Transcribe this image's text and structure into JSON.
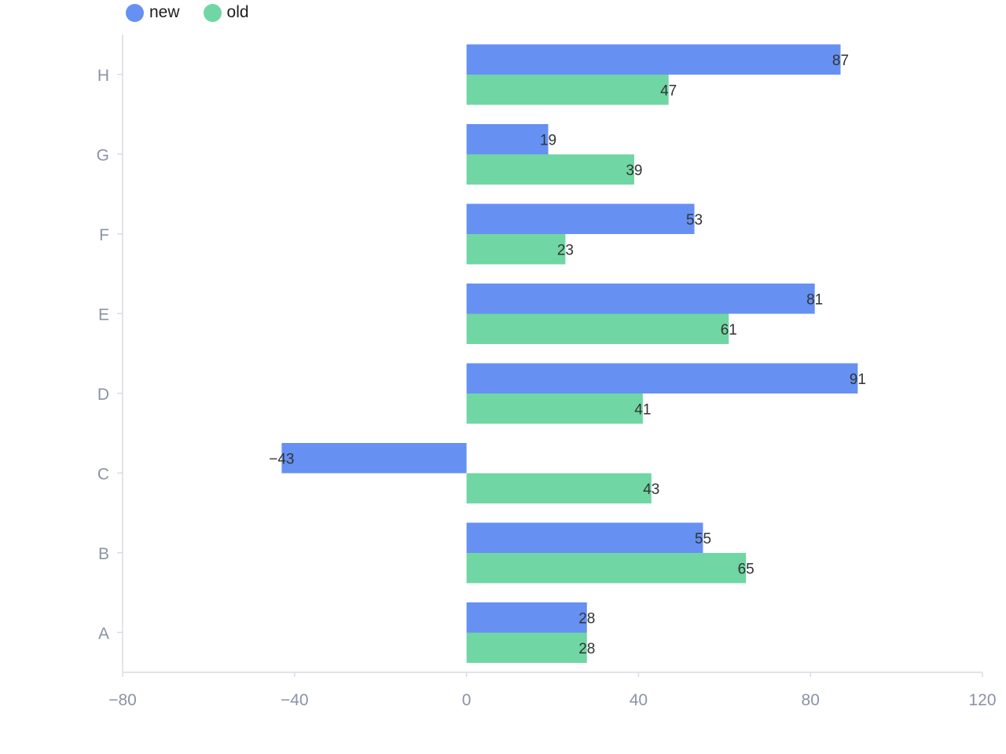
{
  "chart_data": {
    "type": "bar",
    "orientation": "horizontal",
    "categories": [
      "A",
      "B",
      "C",
      "D",
      "E",
      "F",
      "G",
      "H"
    ],
    "series": [
      {
        "name": "new",
        "color": "#6690f2",
        "values": [
          28,
          55,
          -43,
          91,
          81,
          53,
          19,
          87
        ]
      },
      {
        "name": "old",
        "color": "#70d6a3",
        "values": [
          28,
          65,
          43,
          41,
          61,
          23,
          39,
          47
        ]
      }
    ],
    "x_axis": {
      "ticks": [
        -80,
        -40,
        0,
        40,
        80,
        120
      ],
      "tick_labels": [
        "−80",
        "−40",
        "0",
        "40",
        "80",
        "120"
      ],
      "range": [
        -80,
        120
      ]
    },
    "y_axis": {
      "ticks": [
        "A",
        "B",
        "C",
        "D",
        "E",
        "F",
        "G",
        "H"
      ]
    },
    "data_labels": true,
    "grid": false,
    "legend": "top-left"
  }
}
